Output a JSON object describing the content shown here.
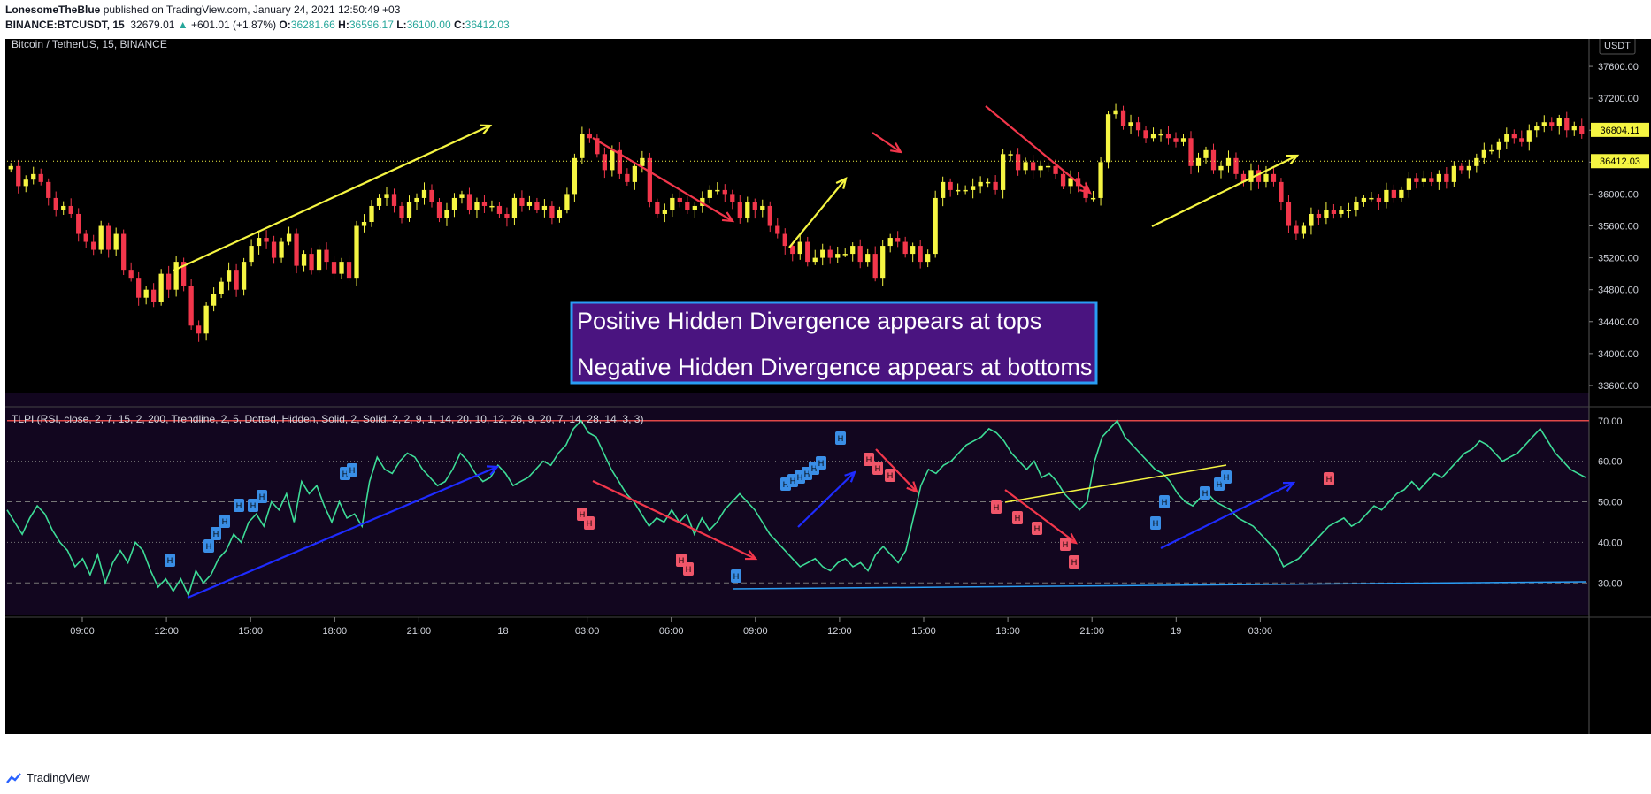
{
  "header": {
    "publisher": "LonesomeTheBlue",
    "published_on": " published on TradingView.com, January 24, 2021 12:50:49 +03",
    "symbol": "BINANCE:BTCUSDT, 15",
    "last_price": "32679.01",
    "change": "+601.01 (+1.87%)",
    "o_label": "O:",
    "o_value": "36281.66",
    "h_label": "H:",
    "h_value": "36596.17",
    "l_label": "L:",
    "l_value": "36100.00",
    "c_label": "C:",
    "c_value": "36412.03"
  },
  "colors": {
    "bull": "#f5f542",
    "bear": "#f2364b",
    "bg": "#000000",
    "rsi_line": "#3ddc97",
    "indicator_bg": "#12061f",
    "note_bg": "#4a1480",
    "note_border": "#2a9df4"
  },
  "main_pane": {
    "title": "Bitcoin / TetherUS, 15, BINANCE",
    "currency_label": "USDT",
    "price_ticks": [
      "37600.00",
      "37200.00",
      "36800.00",
      "36400.00",
      "36000.00",
      "35600.00",
      "35200.00",
      "34800.00",
      "34400.00",
      "34000.00",
      "33600.00"
    ],
    "current_price_label": "36804.11",
    "close_label": "36412.03"
  },
  "note_box": {
    "line1": "Positive Hidden Divergence appears at tops",
    "line2": "Negative Hidden Divergence appears at bottoms"
  },
  "indicator_pane": {
    "title": "TLPI (RSI, close, 2, 7, 15, 2, 200, Trendline, 2, 5, Dotted, Hidden, Solid, 2, Solid, 2, 2, 9, 1, 14, 20, 10, 12, 26, 9, 20, 7, 14, 28, 14, 3, 3)",
    "ticks": [
      "70.00",
      "60.00",
      "50.00",
      "40.00",
      "30.00"
    ],
    "marker_letter": "H"
  },
  "time_axis": [
    "09:00",
    "12:00",
    "15:00",
    "18:00",
    "21:00",
    "18",
    "03:00",
    "06:00",
    "09:00",
    "12:00",
    "15:00",
    "18:00",
    "21:00",
    "19",
    "03:00"
  ],
  "footer": {
    "brand": "TradingView"
  },
  "chart_data": [
    {
      "type": "candlestick",
      "title": "Bitcoin / TetherUS, 15, BINANCE",
      "ylabel": "USDT",
      "ylim": [
        33400,
        37900
      ],
      "close_line": 36412.03,
      "series": [
        {
          "name": "BTCUSDT",
          "closes": [
            36350,
            36100,
            36180,
            36250,
            36150,
            35950,
            35800,
            35850,
            35750,
            35500,
            35400,
            35300,
            35600,
            35300,
            35500,
            35050,
            34950,
            34700,
            34800,
            34650,
            35000,
            34800,
            35150,
            34850,
            34350,
            34250,
            34600,
            34750,
            34900,
            35050,
            34800,
            35150,
            35350,
            35450,
            35400,
            35200,
            35400,
            35500,
            35100,
            35250,
            35050,
            35300,
            35150,
            35000,
            35150,
            34950,
            35600,
            35650,
            35850,
            35950,
            36000,
            35850,
            35700,
            35900,
            35950,
            36050,
            35900,
            35700,
            35800,
            35950,
            36000,
            35800,
            35900,
            35850,
            35850,
            35750,
            35700,
            35950,
            35850,
            35900,
            35800,
            35850,
            35700,
            35800,
            36000,
            36450,
            36750,
            36700,
            36500,
            36300,
            36550,
            36250,
            36150,
            36350,
            36450,
            35900,
            35750,
            35800,
            35950,
            35900,
            35800,
            35850,
            35950,
            36050,
            36050,
            36000,
            35900,
            35700,
            35900,
            35800,
            35850,
            35600,
            35500,
            35350,
            35250,
            35400,
            35150,
            35200,
            35300,
            35200,
            35250,
            35250,
            35350,
            35150,
            35250,
            34950,
            35350,
            35450,
            35400,
            35250,
            35350,
            35150,
            35250,
            35950,
            36150,
            36050,
            36050,
            36050,
            36100,
            36150,
            36150,
            36050,
            36500,
            36500,
            36300,
            36400,
            36300,
            36350,
            36350,
            36250,
            36100,
            36200,
            36100,
            35950,
            35950,
            36400,
            37000,
            37050,
            36850,
            36900,
            36800,
            36700,
            36750,
            36750,
            36700,
            36650,
            36700,
            36350,
            36450,
            36550,
            36300,
            36350,
            36450,
            36250,
            36150,
            36300,
            36150,
            36250,
            36150,
            35900,
            35600,
            35500,
            35600,
            35750,
            35700,
            35800,
            35750,
            35800,
            35800,
            35900,
            35950,
            35950,
            35900,
            36050,
            35950,
            36050,
            36200,
            36150,
            36200,
            36150,
            36250,
            36150,
            36350,
            36300,
            36350,
            36450,
            36550,
            36550,
            36650,
            36750,
            36700,
            36650,
            36800,
            36850,
            36900,
            36850,
            36950,
            36800,
            36850,
            36750
          ]
        }
      ]
    },
    {
      "type": "line",
      "title": "TLPI (RSI, close, 2, 7, 15, 2, 200, Trendline, 2, 5, Dotted, Hidden, Solid, 2, Solid, 2, 2, 9, 1, 14, 20, 10, 12, 26, 9, 20, 7, 14, 28, 14, 3, 3)",
      "ylim": [
        22,
        73
      ],
      "hlines": [
        70,
        50,
        30
      ],
      "series": [
        {
          "name": "RSI",
          "values": [
            48,
            45,
            42,
            46,
            49,
            47,
            43,
            40,
            38,
            34,
            36,
            32,
            37,
            30,
            35,
            38,
            35,
            40,
            38,
            33,
            29,
            31,
            28,
            31,
            27,
            33,
            30,
            32,
            36,
            38,
            42,
            40,
            45,
            47,
            44,
            50,
            48,
            52,
            45,
            55,
            52,
            54,
            49,
            45,
            50,
            46,
            47,
            44,
            55,
            61,
            58,
            57,
            60,
            62,
            61,
            58,
            56,
            54,
            55,
            58,
            62,
            60,
            57,
            55,
            56,
            59,
            57,
            54,
            55,
            56,
            58,
            60,
            59,
            62,
            64,
            68,
            70,
            67,
            66,
            62,
            58,
            55,
            52,
            50,
            47,
            44,
            46,
            45,
            48,
            45,
            47,
            42,
            46,
            43,
            45,
            48,
            50,
            52,
            50,
            48,
            45,
            42,
            40,
            38,
            36,
            34,
            35,
            36,
            34,
            33,
            35,
            36,
            34,
            35,
            33,
            37,
            39,
            37,
            35,
            38,
            46,
            54,
            58,
            57,
            59,
            60,
            62,
            64,
            65,
            66,
            68,
            67,
            65,
            62,
            60,
            58,
            60,
            56,
            57,
            55,
            52,
            50,
            48,
            50,
            60,
            66,
            68,
            70,
            66,
            64,
            62,
            60,
            58,
            57,
            55,
            52,
            50,
            49,
            51,
            52,
            50,
            49,
            48,
            46,
            45,
            44,
            42,
            40,
            38,
            34,
            35,
            36,
            38,
            40,
            42,
            44,
            45,
            46,
            44,
            45,
            47,
            49,
            48,
            50,
            52,
            53,
            55,
            53,
            55,
            57,
            56,
            58,
            60,
            62,
            63,
            65,
            64,
            62,
            60,
            61,
            62,
            64,
            66,
            68,
            65,
            62,
            60,
            58,
            57,
            56
          ]
        }
      ]
    }
  ]
}
